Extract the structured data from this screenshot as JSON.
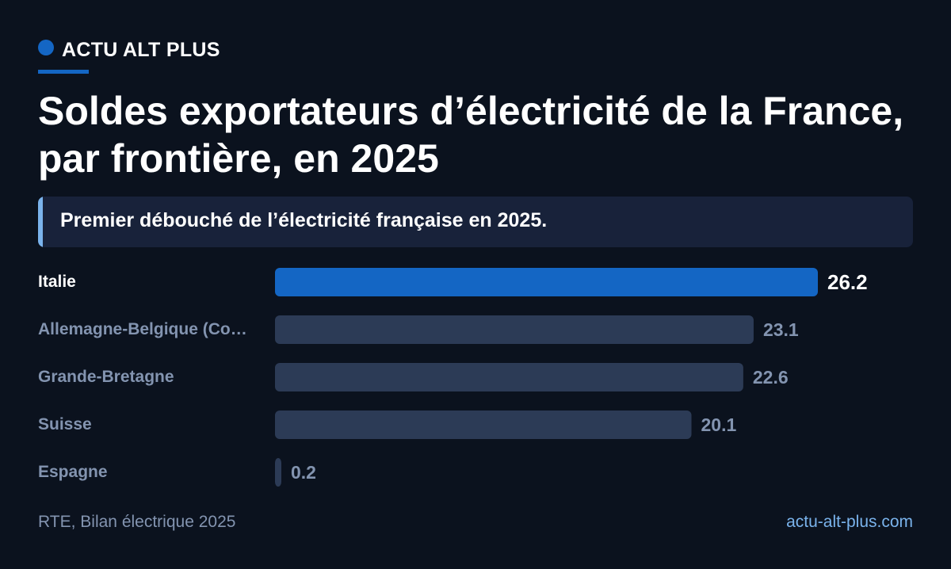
{
  "brand": {
    "name": "ACTU ALT PLUS"
  },
  "title": "Soldes exportateurs d’électricité de la France, par frontière, en 2025",
  "subtitle": "Premier débouché de l’électricité française en 2025.",
  "chart_data": {
    "type": "bar",
    "orientation": "horizontal",
    "title": "Soldes exportateurs d’électricité de la France, par frontière, en 2025",
    "subtitle": "Premier débouché de l’électricité française en 2025.",
    "categories": [
      "Italie",
      "Allemagne-Belgique (Co…",
      "Grande-Bretagne",
      "Suisse",
      "Espagne"
    ],
    "values": [
      26.2,
      23.1,
      22.6,
      20.1,
      0.2
    ],
    "value_labels": [
      "26.2",
      "23.1",
      "22.6",
      "20.1",
      "0.2"
    ],
    "xlim": [
      0,
      26.2
    ],
    "highlight_index": 0,
    "grid": false,
    "legend": "none"
  },
  "colors": {
    "background": "#0b121e",
    "highlight_bar": "#1466c4",
    "bar": "#2c3b56",
    "highlight_text": "#ffffff",
    "muted_text": "#8394b0",
    "subtitle_panel": "#18223a",
    "subtitle_accent": "#7ab3ec",
    "link": "#7ab3ec"
  },
  "footer": {
    "source": "RTE, Bilan électrique 2025",
    "site": "actu-alt-plus.com"
  }
}
